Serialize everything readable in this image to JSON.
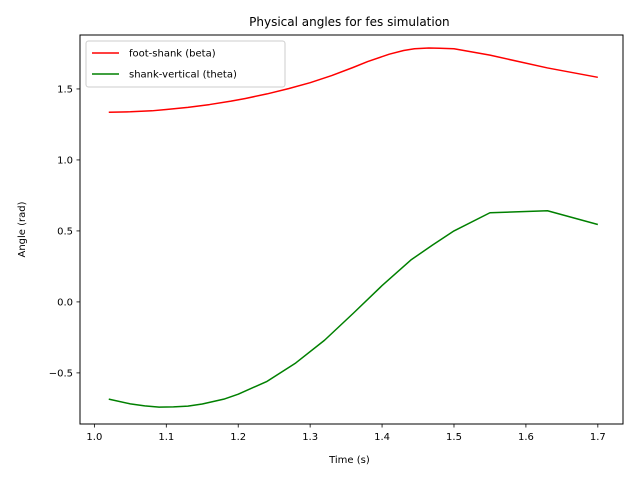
{
  "chart_data": {
    "type": "line",
    "title": "Physical angles for fes simulation",
    "xlabel": "Time (s)",
    "ylabel": "Angle (rad)",
    "xlim": [
      0.98,
      1.735
    ],
    "ylim": [
      -0.86,
      1.88
    ],
    "xticks": [
      "1.0",
      "1.1",
      "1.2",
      "1.3",
      "1.4",
      "1.5",
      "1.6",
      "1.7"
    ],
    "yticks": [
      "−0.5",
      "0.0",
      "0.5",
      "1.0",
      "1.5"
    ],
    "grid": false,
    "legend_position": "top-left",
    "series": [
      {
        "name": "foot-shank (beta)",
        "color": "#ff0000",
        "x": [
          1.02,
          1.05,
          1.08,
          1.1,
          1.13,
          1.16,
          1.19,
          1.21,
          1.24,
          1.27,
          1.3,
          1.33,
          1.36,
          1.38,
          1.41,
          1.43,
          1.445,
          1.465,
          1.48,
          1.5,
          1.55,
          1.63,
          1.7
        ],
        "y": [
          1.336,
          1.339,
          1.346,
          1.355,
          1.37,
          1.39,
          1.414,
          1.433,
          1.465,
          1.502,
          1.544,
          1.594,
          1.652,
          1.693,
          1.745,
          1.771,
          1.783,
          1.788,
          1.787,
          1.783,
          1.738,
          1.648,
          1.582
        ]
      },
      {
        "name": "shank-vertical (theta)",
        "color": "#008000",
        "x": [
          1.02,
          1.05,
          1.07,
          1.09,
          1.11,
          1.13,
          1.15,
          1.18,
          1.2,
          1.24,
          1.28,
          1.32,
          1.36,
          1.4,
          1.44,
          1.47,
          1.5,
          1.55,
          1.63,
          1.7
        ],
        "y": [
          -0.685,
          -0.718,
          -0.732,
          -0.741,
          -0.739,
          -0.734,
          -0.719,
          -0.685,
          -0.65,
          -0.56,
          -0.43,
          -0.27,
          -0.08,
          0.115,
          0.295,
          0.4,
          0.5,
          0.628,
          0.642,
          0.545
        ]
      }
    ]
  }
}
